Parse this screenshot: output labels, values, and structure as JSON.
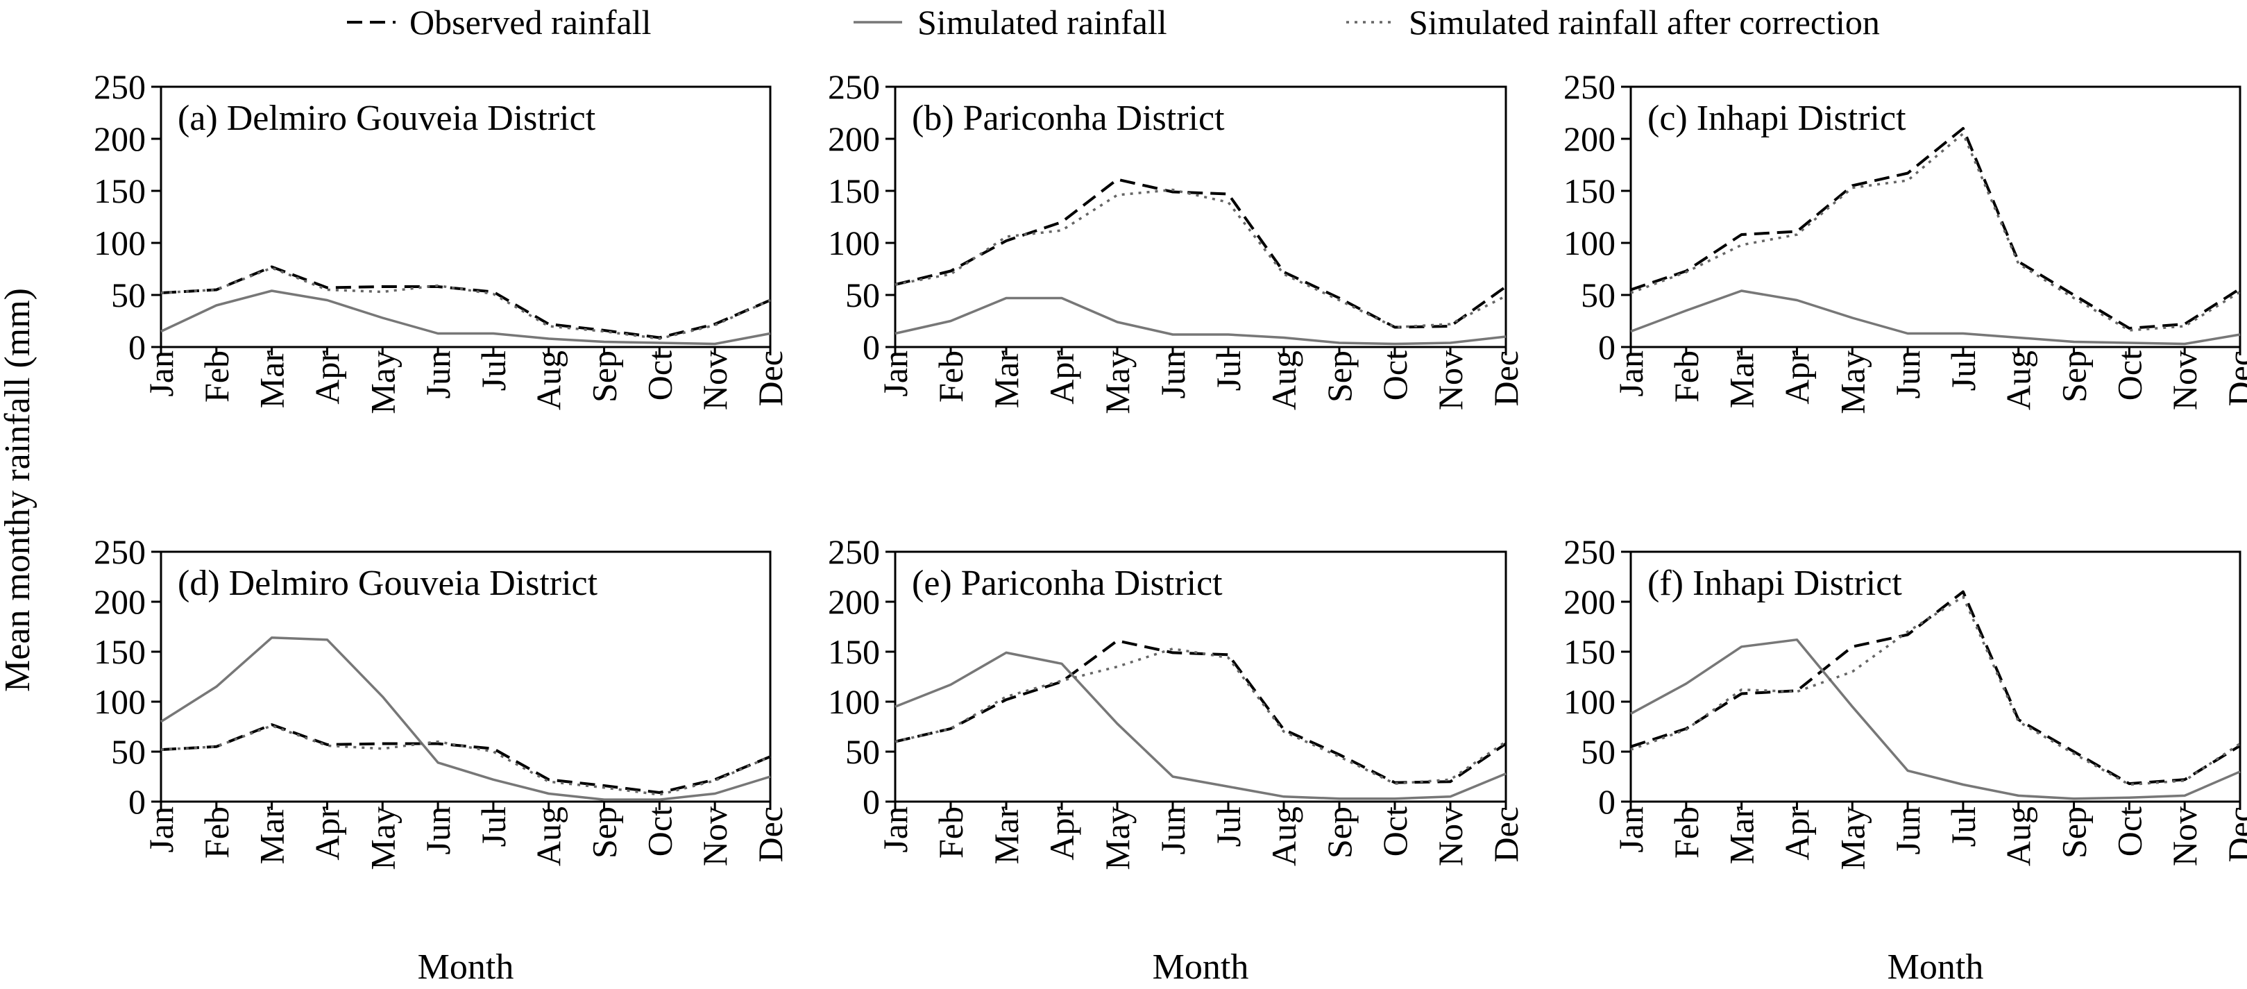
{
  "legend": {
    "observed": "Observed rainfall",
    "simulated": "Simulated rainfall",
    "corrected": "Simulated rainfall after correction"
  },
  "colors": {
    "observed": "#000000",
    "simulated": "#777777",
    "corrected": "#666666"
  },
  "chart_data": [
    {
      "type": "line",
      "title": "(a) Delmiro Gouveia District",
      "xlabel": "Month",
      "ylabel": "Mean monthy rainfall (mm)",
      "categories": [
        "Jan",
        "Feb",
        "Mar",
        "Apr",
        "May",
        "Jun",
        "Jul",
        "Aug",
        "Sep",
        "Oct",
        "Nov",
        "Dec"
      ],
      "ylim": [
        0,
        250
      ],
      "yticks": [
        0,
        50,
        100,
        150,
        200,
        250
      ],
      "series": [
        {
          "name": "Observed rainfall",
          "values": [
            52,
            55,
            77,
            57,
            58,
            58,
            53,
            22,
            16,
            9,
            22,
            45
          ]
        },
        {
          "name": "Simulated rainfall",
          "values": [
            15,
            40,
            54,
            45,
            28,
            13,
            13,
            8,
            5,
            4,
            3,
            13
          ]
        },
        {
          "name": "Simulated rainfall after correction",
          "values": [
            52,
            55,
            76,
            55,
            53,
            59,
            51,
            20,
            15,
            8,
            21,
            45
          ]
        }
      ]
    },
    {
      "type": "line",
      "title": "(b) Pariconha District",
      "xlabel": "",
      "ylabel": "",
      "categories": [
        "Jan",
        "Feb",
        "Mar",
        "Apr",
        "May",
        "Jun",
        "Jul",
        "Aug",
        "Sep",
        "Oct",
        "Nov",
        "Dec"
      ],
      "ylim": [
        0,
        250
      ],
      "yticks": [
        0,
        50,
        100,
        150,
        200,
        250
      ],
      "series": [
        {
          "name": "Observed rainfall",
          "values": [
            60,
            73,
            102,
            120,
            161,
            149,
            147,
            72,
            47,
            19,
            20,
            58
          ]
        },
        {
          "name": "Simulated rainfall",
          "values": [
            13,
            25,
            47,
            47,
            24,
            12,
            12,
            9,
            4,
            3,
            4,
            10
          ]
        },
        {
          "name": "Simulated rainfall after correction",
          "values": [
            60,
            70,
            106,
            112,
            146,
            151,
            139,
            70,
            45,
            19,
            22,
            49
          ]
        }
      ]
    },
    {
      "type": "line",
      "title": "(c) Inhapi District",
      "xlabel": "",
      "ylabel": "",
      "categories": [
        "Jan",
        "Feb",
        "Mar",
        "Apr",
        "May",
        "Jun",
        "Jul",
        "Aug",
        "Sep",
        "Oct",
        "Nov",
        "Dec"
      ],
      "ylim": [
        0,
        250
      ],
      "yticks": [
        0,
        50,
        100,
        150,
        200,
        250
      ],
      "series": [
        {
          "name": "Observed rainfall",
          "values": [
            55,
            73,
            108,
            111,
            155,
            167,
            210,
            82,
            50,
            18,
            22,
            56
          ]
        },
        {
          "name": "Simulated rainfall",
          "values": [
            15,
            35,
            54,
            45,
            28,
            13,
            13,
            9,
            5,
            4,
            3,
            12
          ]
        },
        {
          "name": "Simulated rainfall after correction",
          "values": [
            52,
            72,
            98,
            108,
            153,
            160,
            205,
            80,
            47,
            16,
            20,
            53
          ]
        }
      ]
    },
    {
      "type": "line",
      "title": "(d) Delmiro Gouveia District",
      "xlabel": "Month",
      "ylabel": "",
      "categories": [
        "Jan",
        "Feb",
        "Mar",
        "Apr",
        "May",
        "Jun",
        "Jul",
        "Aug",
        "Sep",
        "Oct",
        "Nov",
        "Dec"
      ],
      "ylim": [
        0,
        250
      ],
      "yticks": [
        0,
        50,
        100,
        150,
        200,
        250
      ],
      "series": [
        {
          "name": "Observed rainfall",
          "values": [
            52,
            55,
            77,
            57,
            58,
            58,
            53,
            22,
            16,
            9,
            22,
            45
          ]
        },
        {
          "name": "Simulated rainfall",
          "values": [
            80,
            115,
            164,
            162,
            105,
            39,
            22,
            8,
            2,
            2,
            8,
            25
          ]
        },
        {
          "name": "Simulated rainfall after correction",
          "values": [
            52,
            55,
            76,
            56,
            53,
            60,
            50,
            20,
            14,
            7,
            21,
            45
          ]
        }
      ]
    },
    {
      "type": "line",
      "title": "(e) Pariconha District",
      "xlabel": "Month",
      "ylabel": "",
      "categories": [
        "Jan",
        "Feb",
        "Mar",
        "Apr",
        "May",
        "Jun",
        "Jul",
        "Aug",
        "Sep",
        "Oct",
        "Nov",
        "Dec"
      ],
      "ylim": [
        0,
        250
      ],
      "yticks": [
        0,
        50,
        100,
        150,
        200,
        250
      ],
      "series": [
        {
          "name": "Observed rainfall",
          "values": [
            60,
            73,
            102,
            120,
            161,
            149,
            147,
            72,
            47,
            19,
            20,
            58
          ]
        },
        {
          "name": "Simulated rainfall",
          "values": [
            95,
            117,
            149,
            138,
            78,
            25,
            15,
            5,
            3,
            3,
            5,
            28
          ]
        },
        {
          "name": "Simulated rainfall after correction",
          "values": [
            60,
            73,
            105,
            121,
            135,
            153,
            144,
            70,
            45,
            18,
            22,
            60
          ]
        }
      ]
    },
    {
      "type": "line",
      "title": "(f) Inhapi District",
      "xlabel": "Month",
      "ylabel": "",
      "categories": [
        "Jan",
        "Feb",
        "Mar",
        "Apr",
        "May",
        "Jun",
        "Jul",
        "Aug",
        "Sep",
        "Oct",
        "Nov",
        "Dec"
      ],
      "ylim": [
        0,
        250
      ],
      "yticks": [
        0,
        50,
        100,
        150,
        200,
        250
      ],
      "series": [
        {
          "name": "Observed rainfall",
          "values": [
            55,
            73,
            108,
            111,
            155,
            167,
            210,
            82,
            50,
            18,
            22,
            56
          ]
        },
        {
          "name": "Simulated rainfall",
          "values": [
            88,
            118,
            155,
            162,
            95,
            31,
            17,
            6,
            3,
            4,
            6,
            30
          ]
        },
        {
          "name": "Simulated rainfall after correction",
          "values": [
            52,
            72,
            112,
            110,
            130,
            170,
            205,
            80,
            48,
            17,
            21,
            58
          ]
        }
      ]
    }
  ]
}
